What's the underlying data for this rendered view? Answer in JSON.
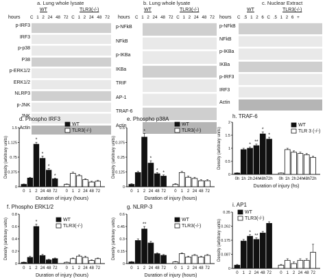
{
  "blots": {
    "a": {
      "title": "a. Lung whole lysate",
      "hours_label": "hours",
      "wt": "WT",
      "ko": "TLR3(-/-)",
      "lanes": "C  1  2  24 48 72  C  1  2  24 48 72",
      "rows": [
        "p-IRF3",
        "IRF3",
        "p-p38",
        "P38",
        "p-ERK1/2",
        "ERK1/2",
        "NLRP3",
        "p-JNK",
        "JNK",
        "Actin"
      ]
    },
    "b": {
      "title": "b. Lung whole lysate",
      "hours_label": "hours",
      "wt": "WT",
      "ko": "TLR3(-/-)",
      "lanes": "C  1  2  24 48 72  C  1  2  24 48 72",
      "rows": [
        "p-NFkB",
        "NFkB",
        "p-IKBa",
        "IKBa",
        "TRIF",
        "AP-1",
        "TRAF-6",
        "Actin"
      ]
    },
    "c": {
      "title": "c. Nuclear Extract",
      "hours_label": "hours",
      "wt": "WT",
      "ko": "TLR3(-/-)",
      "lanes": "C  .5  1  2  6   C  .5  1  2  6  +",
      "rows": [
        "p-NFkB",
        "NFkB",
        "p-IKBa",
        "IKBa",
        "p-IRF3",
        "IRF3",
        "Actin"
      ]
    }
  },
  "colors": {
    "wt": "#111111",
    "ko": "#ffffff",
    "axis": "#111111"
  },
  "chart_data": [
    {
      "panel": "d",
      "type": "bar",
      "title": "d. Phospho IRF3",
      "xlabel": "Duration of injury (hours)",
      "ylabel": "Density (arbitrary units)",
      "categories": [
        "0",
        "1",
        "2",
        "24",
        "48",
        "72"
      ],
      "ylim": [
        0,
        1.5
      ],
      "series": [
        {
          "name": "WT",
          "values": [
            0.06,
            0.22,
            1.08,
            0.72,
            0.42,
            0.2
          ],
          "errors": [
            0.01,
            0.02,
            0.05,
            0.06,
            0.04,
            0.02
          ]
        },
        {
          "name": "TLR3(-/-)",
          "values": [
            0.06,
            0.34,
            0.28,
            0.18,
            0.12,
            0.14
          ],
          "errors": [
            0.01,
            0.03,
            0.03,
            0.02,
            0.02,
            0.02
          ]
        }
      ],
      "annotations": [
        "*",
        "*",
        "*",
        "*"
      ],
      "legend": "top-right"
    },
    {
      "panel": "e",
      "type": "bar",
      "title": "e. Phospho p38A",
      "xlabel": "Duration of injury (hours)",
      "ylabel": "Density (arbitrary units)",
      "categories": [
        "0",
        "1",
        "2",
        "24",
        "48",
        "72"
      ],
      "ylim": [
        0,
        0.5
      ],
      "series": [
        {
          "name": "WT",
          "values": [
            0.02,
            0.12,
            0.42,
            0.2,
            0.11,
            0.09
          ],
          "errors": [
            0.005,
            0.01,
            0.03,
            0.02,
            0.01,
            0.01
          ]
        },
        {
          "name": "TLR3(-/-)",
          "values": [
            0.02,
            0.12,
            0.08,
            0.07,
            0.05,
            0.05
          ],
          "errors": [
            0.005,
            0.01,
            0.01,
            0.01,
            0.01,
            0.01
          ]
        }
      ],
      "annotations": [
        "*",
        "*",
        "*",
        "*"
      ],
      "legend": "top-right"
    },
    {
      "panel": "h",
      "type": "bar",
      "title": "h. TRAF-6",
      "xlabel": "Duration of injury (hs)",
      "ylabel": "Density (arbitrary units)",
      "categories": [
        "0h",
        "1h",
        "2h",
        "24h",
        "48h",
        "72h"
      ],
      "ylim": [
        0,
        2
      ],
      "series": [
        {
          "name": "WT",
          "values": [
            0.05,
            0.95,
            1.0,
            1.1,
            1.55,
            1.35
          ],
          "errors": [
            0.01,
            0.05,
            0.05,
            0.06,
            0.08,
            0.07
          ]
        },
        {
          "name": "TLR 3 (-/-)",
          "values": [
            0.05,
            0.95,
            0.85,
            0.8,
            0.75,
            0.65
          ],
          "errors": [
            0.01,
            0.05,
            0.05,
            0.05,
            0.05,
            0.05
          ]
        }
      ],
      "annotations": [
        "*",
        "**",
        "*",
        "*"
      ],
      "legend": "top-right"
    },
    {
      "panel": "f",
      "type": "bar",
      "title": "f. Phospho ERK1/2",
      "xlabel": "Duration of injury (hours)",
      "ylabel": "Density (arbitrary units)",
      "categories": [
        "0",
        "1",
        "2",
        "24",
        "48",
        "72"
      ],
      "ylim": [
        0,
        0.8
      ],
      "series": [
        {
          "name": "WT",
          "values": [
            0.02,
            0.1,
            0.6,
            0.13,
            0.06,
            0.08
          ],
          "errors": [
            0.005,
            0.02,
            0.04,
            0.02,
            0.01,
            0.01
          ]
        },
        {
          "name": "TLR3(-/-)",
          "values": [
            0.02,
            0.08,
            0.12,
            0.1,
            0.05,
            0.08
          ],
          "errors": [
            0.005,
            0.01,
            0.02,
            0.02,
            0.01,
            0.01
          ]
        }
      ],
      "annotations": [
        "*"
      ],
      "legend": "top-right"
    },
    {
      "panel": "g",
      "type": "bar",
      "title": "g. NLRP-3",
      "xlabel": "Duration of injury (hours)",
      "ylabel": "Density (arbitrary units)",
      "categories": [
        "0",
        "1",
        "2",
        "24",
        "48",
        "72"
      ],
      "ylim": [
        0,
        0.6
      ],
      "series": [
        {
          "name": "WT",
          "values": [
            0.02,
            0.28,
            0.42,
            0.25,
            0.12,
            0.1
          ],
          "errors": [
            0.005,
            0.02,
            0.03,
            0.02,
            0.01,
            0.01
          ]
        },
        {
          "name": "TLR3(-/-)",
          "values": [
            0.02,
            0.12,
            0.08,
            0.1,
            0.08,
            0.1
          ],
          "errors": [
            0.005,
            0.01,
            0.01,
            0.01,
            0.01,
            0.01
          ]
        }
      ],
      "annotations": [
        "**"
      ],
      "legend": "top-right"
    },
    {
      "panel": "i",
      "type": "bar",
      "title": "i. AP1",
      "xlabel": "Duration of injury (hours)",
      "ylabel": "Density (arbitrary units)",
      "categories": [
        "0",
        "1",
        "2",
        "24",
        "48",
        "72"
      ],
      "ylim": [
        0,
        0.35
      ],
      "series": [
        {
          "name": "WT",
          "values": [
            0.02,
            0.17,
            0.2,
            0.18,
            0.22,
            0.28
          ],
          "errors": [
            0.005,
            0.01,
            0.01,
            0.01,
            0.01,
            0.01
          ]
        },
        {
          "name": "TLR3(-/-)",
          "values": [
            0.02,
            0.05,
            0.03,
            0.05,
            0.05,
            0.1
          ],
          "errors": [
            0.005,
            0.01,
            0.01,
            0.01,
            0.01,
            0.05
          ]
        }
      ],
      "annotations": [
        "*",
        "**"
      ],
      "legend": "top-left"
    }
  ]
}
